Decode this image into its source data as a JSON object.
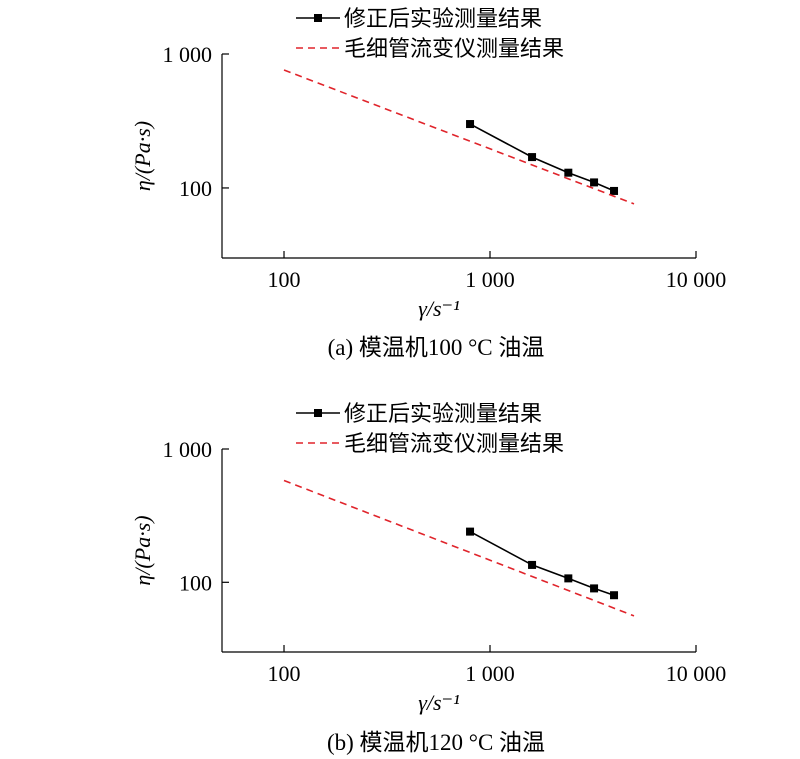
{
  "chart_data": [
    {
      "type": "line",
      "caption": "(a) 模温机100 °C 油温",
      "x_scale": "log",
      "y_scale": "log",
      "xlim": [
        50,
        10000
      ],
      "ylim": [
        30,
        1000
      ],
      "x_ticks": [
        100,
        1000,
        10000
      ],
      "x_tick_labels": [
        "100",
        "1 000",
        "10 000"
      ],
      "y_ticks": [
        100,
        1000
      ],
      "y_tick_labels": [
        "100",
        "1 000"
      ],
      "xlabel": "γ/s⁻¹",
      "ylabel": "η/(Pa·s)",
      "legend_position": "top-right",
      "series": [
        {
          "name": "修正后实验测量结果",
          "style": "solid-square-markers",
          "color": "#000000",
          "x": [
            800,
            1600,
            2400,
            3200,
            4000
          ],
          "y": [
            300,
            170,
            130,
            110,
            95
          ]
        },
        {
          "name": "毛细管流变仪测量结果",
          "style": "dashed",
          "color": "#e0242b",
          "x": [
            100,
            5000
          ],
          "y": [
            760,
            76
          ]
        }
      ]
    },
    {
      "type": "line",
      "caption": "(b) 模温机120 °C 油温",
      "x_scale": "log",
      "y_scale": "log",
      "xlim": [
        50,
        10000
      ],
      "ylim": [
        30,
        1000
      ],
      "x_ticks": [
        100,
        1000,
        10000
      ],
      "x_tick_labels": [
        "100",
        "1 000",
        "10 000"
      ],
      "y_ticks": [
        100,
        1000
      ],
      "y_tick_labels": [
        "100",
        "1 000"
      ],
      "xlabel": "γ/s⁻¹",
      "ylabel": "η/(Pa·s)",
      "legend_position": "top-right",
      "series": [
        {
          "name": "修正后实验测量结果",
          "style": "solid-square-markers",
          "color": "#000000",
          "x": [
            800,
            1600,
            2400,
            3200,
            4000
          ],
          "y": [
            240,
            135,
            107,
            90,
            80
          ]
        },
        {
          "name": "毛细管流变仪测量结果",
          "style": "dashed",
          "color": "#e0242b",
          "x": [
            100,
            5000
          ],
          "y": [
            580,
            56
          ]
        }
      ]
    }
  ]
}
